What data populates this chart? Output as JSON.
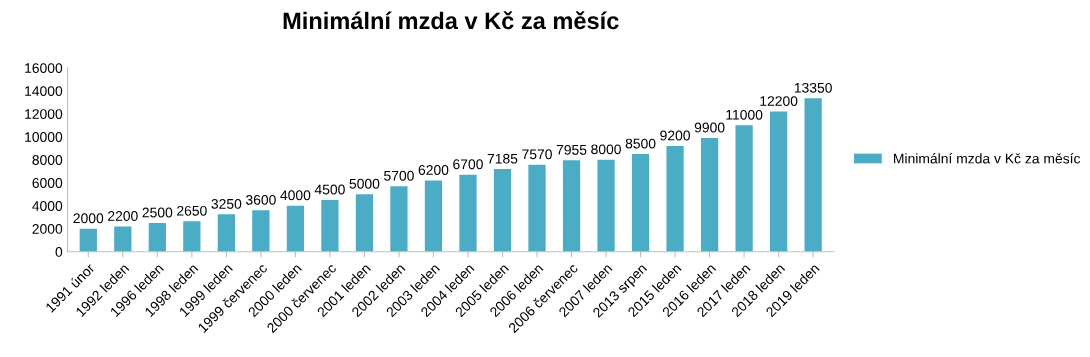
{
  "chart_data": {
    "type": "bar",
    "title": "Minimální mzda v Kč za měsíc",
    "categories": [
      "1991 únor",
      "1992 leden",
      "1996 leden",
      "1998 leden",
      "1999 leden",
      "1999 červenec",
      "2000 leden",
      "2000 červenec",
      "2001 leden",
      "2002 leden",
      "2003 leden",
      "2004 leden",
      "2005 leden",
      "2006 leden",
      "2006 červenec",
      "2007 leden",
      "2013 srpen",
      "2015 leden",
      "2016 leden",
      "2017 leden",
      "2018 leden",
      "2019 leden"
    ],
    "series": [
      {
        "name": "Minimální mzda v Kč za měsíc",
        "color": "#4bacc6",
        "values": [
          2000,
          2200,
          2500,
          2650,
          3250,
          3600,
          4000,
          4500,
          5000,
          5700,
          6200,
          6700,
          7185,
          7570,
          7955,
          8000,
          8500,
          9200,
          9900,
          11000,
          12200,
          13350
        ]
      }
    ],
    "ylim": [
      0,
      16000
    ],
    "yticks": [
      0,
      2000,
      4000,
      6000,
      8000,
      10000,
      12000,
      14000,
      16000
    ],
    "data_labels": true,
    "legend": "right",
    "grid": false
  }
}
